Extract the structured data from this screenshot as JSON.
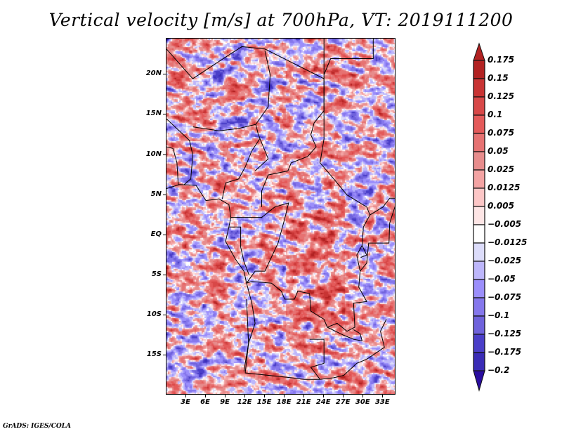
{
  "title": "Vertical velocity [m/s] at 700hPa, VT: 2019111200",
  "footer": "GrADS: IGES/COLA",
  "map": {
    "variable": "Vertical velocity",
    "units": "m/s",
    "level": "700hPa",
    "valid_time": "2019111200",
    "lat_range": [
      -20,
      24.5
    ],
    "lon_range": [
      0,
      35
    ],
    "y_ticks": [
      {
        "label": "20N",
        "lat": 20
      },
      {
        "label": "15N",
        "lat": 15
      },
      {
        "label": "10N",
        "lat": 10
      },
      {
        "label": "5N",
        "lat": 5
      },
      {
        "label": "EQ",
        "lat": 0
      },
      {
        "label": "5S",
        "lat": -5
      },
      {
        "label": "10S",
        "lat": -10
      },
      {
        "label": "15S",
        "lat": -15
      }
    ],
    "x_ticks": [
      {
        "label": "3E",
        "lon": 3
      },
      {
        "label": "6E",
        "lon": 6
      },
      {
        "label": "9E",
        "lon": 9
      },
      {
        "label": "12E",
        "lon": 12
      },
      {
        "label": "15E",
        "lon": 15
      },
      {
        "label": "18E",
        "lon": 18
      },
      {
        "label": "21E",
        "lon": 21
      },
      {
        "label": "24E",
        "lon": 24
      },
      {
        "label": "27E",
        "lon": 27
      },
      {
        "label": "30E",
        "lon": 30
      },
      {
        "label": "33E",
        "lon": 33
      }
    ]
  },
  "colorbar": {
    "levels": [
      {
        "label": "0.175",
        "color": "#b22222"
      },
      {
        "label": "0.15",
        "color": "#c83434"
      },
      {
        "label": "0.125",
        "color": "#d84848"
      },
      {
        "label": "0.1",
        "color": "#e45a5a"
      },
      {
        "label": "0.075",
        "color": "#e67272"
      },
      {
        "label": "0.05",
        "color": "#e78c8c"
      },
      {
        "label": "0.025",
        "color": "#f3a3a3"
      },
      {
        "label": "0.0125",
        "color": "#fcc6c6"
      },
      {
        "label": "0.005",
        "color": "#fde5e5"
      },
      {
        "label": "-0.005",
        "color": "#ffffff"
      },
      {
        "label": "-0.0125",
        "color": "#dcdcfa"
      },
      {
        "label": "-0.025",
        "color": "#bdb6fb"
      },
      {
        "label": "-0.05",
        "color": "#9b8efb"
      },
      {
        "label": "-0.075",
        "color": "#8577ec"
      },
      {
        "label": "-0.1",
        "color": "#6f62dc"
      },
      {
        "label": "-0.125",
        "color": "#4a3ec8"
      },
      {
        "label": "-0.175",
        "color": "#3a2cb6"
      },
      {
        "label": "-0.2",
        "color": "#2e22a2"
      }
    ],
    "over_color": "#b22222",
    "under_color": "#2a0da0"
  }
}
